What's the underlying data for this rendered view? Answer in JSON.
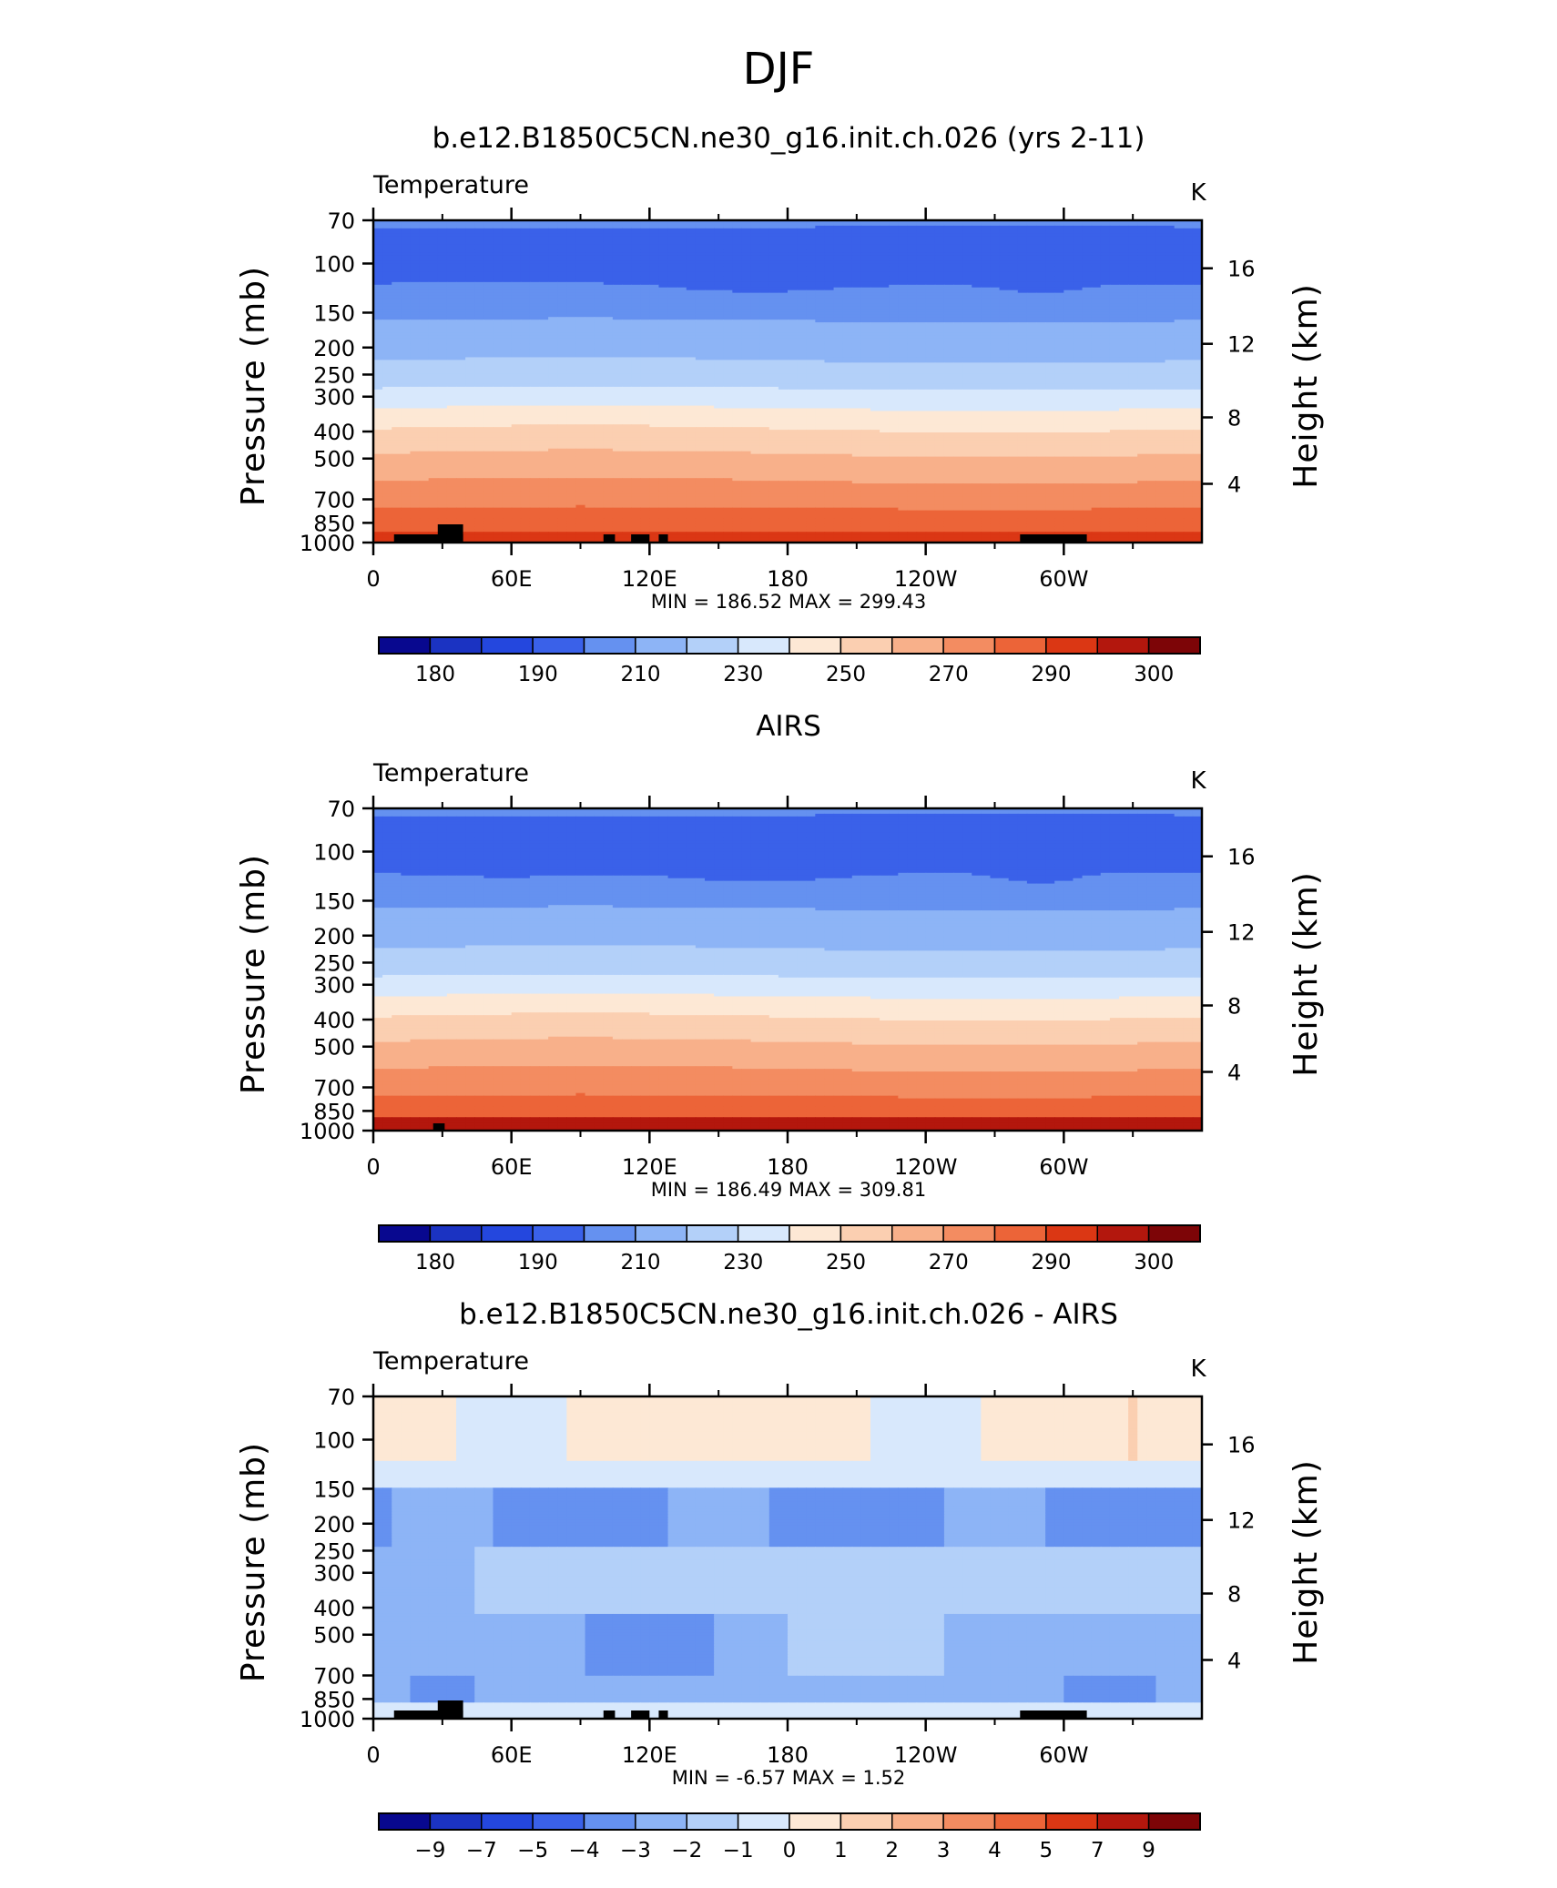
{
  "page_title": "DJF",
  "chart_data": [
    {
      "type": "heatmap",
      "title": "b.e12.B1850C5CN.ne30_g16.init.ch.026 (yrs 2-11)",
      "left_label": "Temperature",
      "units": "K",
      "ylabel": "Pressure (mb)",
      "ylabel_right": "Height (km)",
      "yscale": "log",
      "ylim": [
        1000,
        70
      ],
      "y_ticks": [
        "70",
        "100",
        "150",
        "200",
        "250",
        "300",
        "400",
        "500",
        "700",
        "850",
        "1000"
      ],
      "y_right_ticks": [
        "4",
        "8",
        "12",
        "16"
      ],
      "xlim": [
        0,
        360
      ],
      "x_ticks": [
        "0",
        "60E",
        "120E",
        "180",
        "120W",
        "60W"
      ],
      "stats_text": "MIN =  186.52   MAX =  299.43",
      "min": 186.52,
      "max": 299.43,
      "colorbar_labels": [
        "180",
        "190",
        "210",
        "230",
        "250",
        "270",
        "290",
        "300"
      ],
      "colorbar_colors": [
        "#08088f",
        "#1b33c2",
        "#2447de",
        "#3a61e9",
        "#6591f0",
        "#8db4f6",
        "#b3d0f9",
        "#d8e8fc",
        "#fde8d5",
        "#fbcfb1",
        "#f8b08a",
        "#f38c61",
        "#ec6438",
        "#db3714",
        "#b3170d",
        "#7d0507"
      ],
      "levels_to_band_color": [
        {
          "p": [
            70,
            92
          ],
          "value": 200
        },
        {
          "p": [
            92,
            118
          ],
          "value": 195
        },
        {
          "p": [
            118,
            158
          ],
          "value": 205
        },
        {
          "p": [
            158,
            192
          ],
          "value": 213
        },
        {
          "p": [
            192,
            232
          ],
          "value": 218
        },
        {
          "p": [
            232,
            280
          ],
          "value": 225
        },
        {
          "p": [
            280,
            330
          ],
          "value": 236
        },
        {
          "p": [
            330,
            385
          ],
          "value": 246
        },
        {
          "p": [
            385,
            450
          ],
          "value": 255
        },
        {
          "p": [
            450,
            530
          ],
          "value": 263
        },
        {
          "p": [
            530,
            620
          ],
          "value": 270
        },
        {
          "p": [
            620,
            745
          ],
          "value": 277
        },
        {
          "p": [
            745,
            880
          ],
          "value": 284
        },
        {
          "p": [
            880,
            1000
          ],
          "value": 291
        }
      ]
    },
    {
      "type": "heatmap",
      "title": "AIRS",
      "left_label": "Temperature",
      "units": "K",
      "ylabel": "Pressure (mb)",
      "ylabel_right": "Height (km)",
      "yscale": "log",
      "ylim": [
        1000,
        70
      ],
      "y_ticks": [
        "70",
        "100",
        "150",
        "200",
        "250",
        "300",
        "400",
        "500",
        "700",
        "850",
        "1000"
      ],
      "y_right_ticks": [
        "4",
        "8",
        "12",
        "16"
      ],
      "xlim": [
        0,
        360
      ],
      "x_ticks": [
        "0",
        "60E",
        "120E",
        "180",
        "120W",
        "60W"
      ],
      "stats_text": "MIN =  186.49   MAX =  309.81",
      "min": 186.49,
      "max": 309.81,
      "colorbar_labels": [
        "180",
        "190",
        "210",
        "230",
        "250",
        "270",
        "290",
        "300"
      ],
      "colorbar_colors": [
        "#08088f",
        "#1b33c2",
        "#2447de",
        "#3a61e9",
        "#6591f0",
        "#8db4f6",
        "#b3d0f9",
        "#d8e8fc",
        "#fde8d5",
        "#fbcfb1",
        "#f8b08a",
        "#f38c61",
        "#ec6438",
        "#db3714",
        "#b3170d",
        "#7d0507"
      ]
    },
    {
      "type": "heatmap",
      "title": "b.e12.B1850C5CN.ne30_g16.init.ch.026 - AIRS",
      "left_label": "Temperature",
      "units": "K",
      "ylabel": "Pressure (mb)",
      "ylabel_right": "Height (km)",
      "yscale": "log",
      "ylim": [
        1000,
        70
      ],
      "y_ticks": [
        "70",
        "100",
        "150",
        "200",
        "250",
        "300",
        "400",
        "500",
        "700",
        "850",
        "1000"
      ],
      "y_right_ticks": [
        "4",
        "8",
        "12",
        "16"
      ],
      "xlim": [
        0,
        360
      ],
      "x_ticks": [
        "0",
        "60E",
        "120E",
        "180",
        "120W",
        "60W"
      ],
      "stats_text": "MIN =    -6.57   MAX =       1.52",
      "min": -6.57,
      "max": 1.52,
      "colorbar_labels": [
        "−9",
        "−7",
        "−5",
        "−4",
        "−3",
        "−2",
        "−1",
        "0",
        "1",
        "2",
        "3",
        "4",
        "5",
        "7",
        "9"
      ],
      "colorbar_colors": [
        "#08088f",
        "#1b33c2",
        "#2447de",
        "#3a61e9",
        "#6591f0",
        "#8db4f6",
        "#b3d0f9",
        "#d8e8fc",
        "#fde8d5",
        "#fbcfb1",
        "#f8b08a",
        "#f38c61",
        "#ec6438",
        "#db3714",
        "#b3170d",
        "#7d0507"
      ]
    }
  ]
}
